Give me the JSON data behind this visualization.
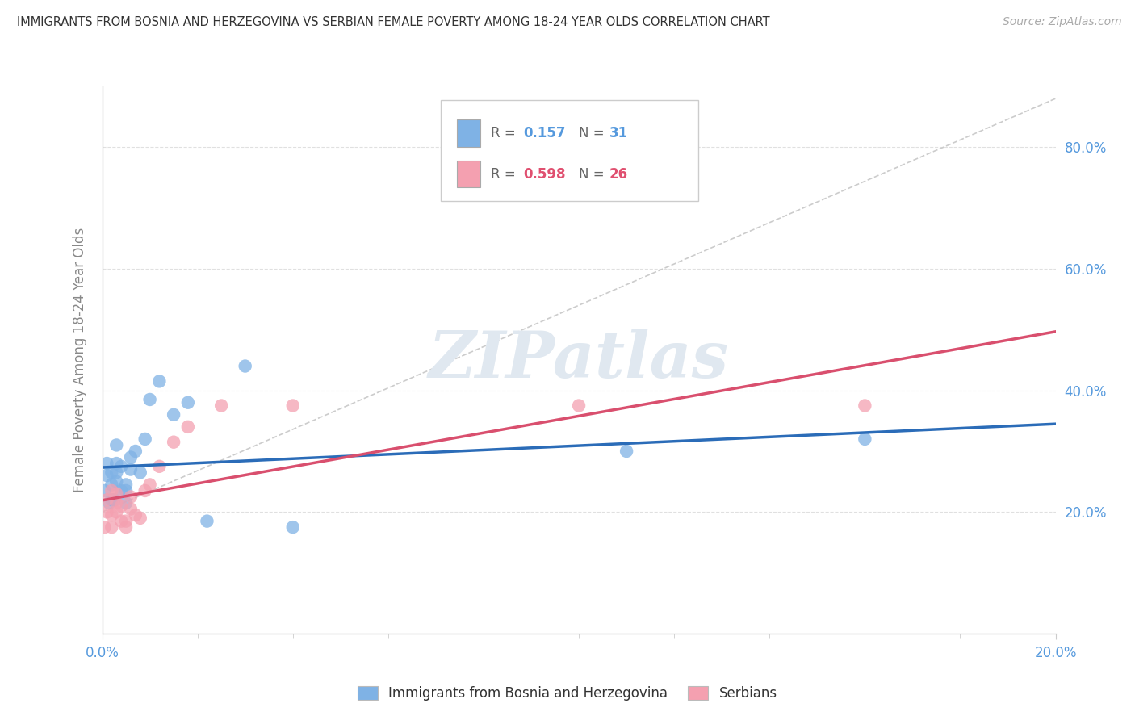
{
  "title": "IMMIGRANTS FROM BOSNIA AND HERZEGOVINA VS SERBIAN FEMALE POVERTY AMONG 18-24 YEAR OLDS CORRELATION CHART",
  "source": "Source: ZipAtlas.com",
  "ylabel": "Female Poverty Among 18-24 Year Olds",
  "xlim": [
    0.0,
    0.2
  ],
  "ylim": [
    0.0,
    0.9
  ],
  "ytick_vals": [
    0.0,
    0.2,
    0.4,
    0.6,
    0.8
  ],
  "ytick_labels": [
    "",
    "20.0%",
    "40.0%",
    "60.0%",
    "80.0%"
  ],
  "xtick_vals": [
    0.0,
    0.2
  ],
  "xtick_labels": [
    "0.0%",
    "20.0%"
  ],
  "bosnia_color": "#7fb2e5",
  "serbian_color": "#f4a0b0",
  "bosnia_line_color": "#2b6cb8",
  "serbian_line_color": "#d94f6e",
  "diag_color": "#cccccc",
  "grid_color": "#e0e0e0",
  "spine_color": "#cccccc",
  "ylabel_color": "#888888",
  "tick_label_color": "#5599dd",
  "title_color": "#333333",
  "source_color": "#aaaaaa",
  "watermark": "ZIPatlas",
  "watermark_color": "#e0e8f0",
  "legend_R1": "0.157",
  "legend_N1": "31",
  "legend_R2": "0.598",
  "legend_N2": "26",
  "R1_color": "#5599dd",
  "R2_color": "#e05070",
  "bosnia_x": [
    0.0005,
    0.001,
    0.001,
    0.0015,
    0.002,
    0.002,
    0.002,
    0.0025,
    0.003,
    0.003,
    0.003,
    0.003,
    0.004,
    0.004,
    0.005,
    0.005,
    0.005,
    0.006,
    0.006,
    0.007,
    0.008,
    0.009,
    0.01,
    0.012,
    0.015,
    0.018,
    0.022,
    0.03,
    0.04,
    0.11,
    0.16
  ],
  "bosnia_y": [
    0.235,
    0.26,
    0.28,
    0.215,
    0.22,
    0.245,
    0.265,
    0.22,
    0.25,
    0.28,
    0.31,
    0.265,
    0.235,
    0.275,
    0.245,
    0.215,
    0.235,
    0.27,
    0.29,
    0.3,
    0.265,
    0.32,
    0.385,
    0.415,
    0.36,
    0.38,
    0.185,
    0.44,
    0.175,
    0.3,
    0.32
  ],
  "serbian_x": [
    0.0005,
    0.001,
    0.001,
    0.002,
    0.002,
    0.002,
    0.003,
    0.003,
    0.003,
    0.004,
    0.004,
    0.005,
    0.005,
    0.006,
    0.006,
    0.007,
    0.008,
    0.009,
    0.01,
    0.012,
    0.015,
    0.018,
    0.025,
    0.04,
    0.1,
    0.16
  ],
  "serbian_y": [
    0.175,
    0.2,
    0.22,
    0.175,
    0.195,
    0.235,
    0.2,
    0.215,
    0.23,
    0.185,
    0.21,
    0.175,
    0.185,
    0.205,
    0.225,
    0.195,
    0.19,
    0.235,
    0.245,
    0.275,
    0.315,
    0.34,
    0.375,
    0.375,
    0.375,
    0.375
  ]
}
